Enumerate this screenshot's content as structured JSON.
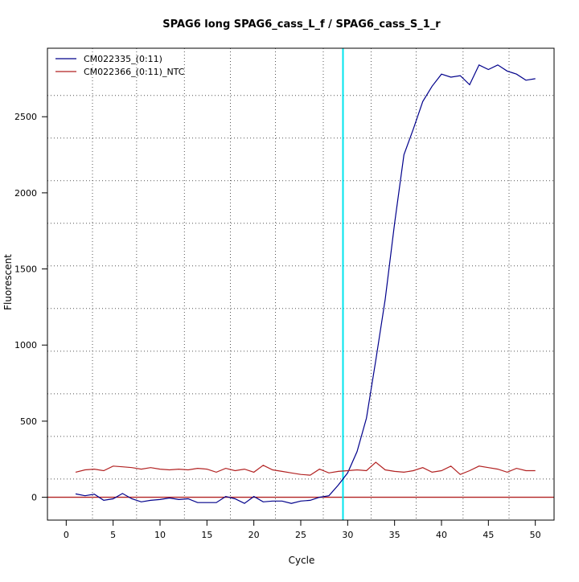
{
  "chart_data": {
    "type": "line",
    "title": "SPAG6 long SPAG6_cass_L_f / SPAG6_cass_S_1_r",
    "xlabel": "Cycle",
    "ylabel": "Fluorescent",
    "xlim": [
      -2,
      52
    ],
    "ylim": [
      -150,
      2950
    ],
    "xticks": [
      0,
      5,
      10,
      15,
      20,
      25,
      30,
      35,
      40,
      45,
      50
    ],
    "yticks": [
      0,
      500,
      1000,
      1500,
      2000,
      2500
    ],
    "grid": {
      "x_dotted": [
        2.8,
        7.5,
        12.6,
        17.5,
        22.3,
        27.4,
        32.5,
        37.3,
        42.3,
        47.2
      ],
      "y_dotted": [
        120,
        400,
        680,
        960,
        1240,
        1520,
        1800,
        2080,
        2360,
        2640
      ]
    },
    "threshold": {
      "axis": "x",
      "value": 29.5,
      "color": "#00e5ee"
    },
    "baseline": {
      "axis": "y",
      "value": 0,
      "color": "#b22222"
    },
    "legend": {
      "placement": "top-left"
    },
    "series": [
      {
        "name": "CM022335_(0:11)",
        "color": "#00008b",
        "x": [
          1,
          2,
          3,
          4,
          5,
          6,
          7,
          8,
          9,
          10,
          11,
          12,
          13,
          14,
          15,
          16,
          17,
          18,
          19,
          20,
          21,
          22,
          23,
          24,
          25,
          26,
          27,
          28,
          29,
          30,
          31,
          32,
          33,
          34,
          35,
          36,
          37,
          38,
          39,
          40,
          41,
          42,
          43,
          44,
          45,
          46,
          47,
          48,
          49,
          50
        ],
        "values": [
          22,
          10,
          20,
          -20,
          -10,
          25,
          -10,
          -30,
          -20,
          -15,
          -5,
          -15,
          -10,
          -35,
          -35,
          -35,
          5,
          -10,
          -40,
          5,
          -30,
          -25,
          -25,
          -40,
          -25,
          -20,
          0,
          10,
          80,
          160,
          300,
          520,
          900,
          1300,
          1800,
          2250,
          2420,
          2600,
          2700,
          2780,
          2760,
          2770,
          2710,
          2840,
          2810,
          2840,
          2800,
          2780,
          2740,
          2750
        ]
      },
      {
        "name": "CM022366_(0:11)_NTC",
        "color": "#b22222",
        "x": [
          1,
          2,
          3,
          4,
          5,
          6,
          7,
          8,
          9,
          10,
          11,
          12,
          13,
          14,
          15,
          16,
          17,
          18,
          19,
          20,
          21,
          22,
          23,
          24,
          25,
          26,
          27,
          28,
          29,
          30,
          31,
          32,
          33,
          34,
          35,
          36,
          37,
          38,
          39,
          40,
          41,
          42,
          43,
          44,
          45,
          46,
          47,
          48,
          49,
          50
        ],
        "values": [
          165,
          180,
          185,
          175,
          205,
          200,
          195,
          185,
          195,
          185,
          180,
          185,
          180,
          190,
          185,
          165,
          190,
          175,
          185,
          165,
          210,
          180,
          170,
          160,
          150,
          145,
          185,
          160,
          170,
          175,
          180,
          175,
          230,
          180,
          170,
          165,
          175,
          195,
          165,
          175,
          205,
          150,
          175,
          205,
          195,
          185,
          165,
          190,
          175,
          175
        ]
      }
    ]
  }
}
